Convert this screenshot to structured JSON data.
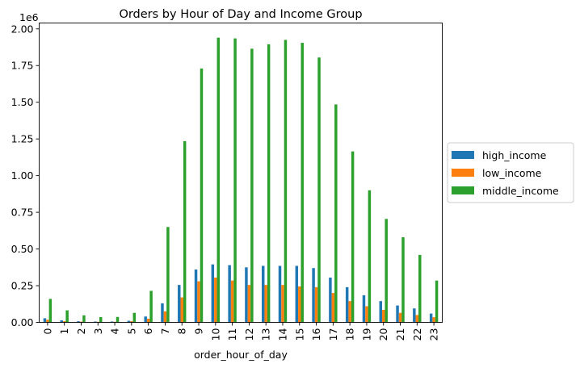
{
  "chart_data": {
    "type": "bar",
    "title": "Orders by Hour of Day and Income Group",
    "xlabel": "order_hour_of_day",
    "ylabel": "",
    "y_offset_label": "1e6",
    "ylim": [
      0,
      2.04
    ],
    "y_ticks": [
      "0.00",
      "0.25",
      "0.50",
      "0.75",
      "1.00",
      "1.25",
      "1.50",
      "1.75",
      "2.00"
    ],
    "legend_position": "center-right-outside",
    "grid": false,
    "categories": [
      "0",
      "1",
      "2",
      "3",
      "4",
      "5",
      "6",
      "7",
      "8",
      "9",
      "10",
      "11",
      "12",
      "13",
      "14",
      "15",
      "16",
      "17",
      "18",
      "19",
      "20",
      "21",
      "22",
      "23"
    ],
    "series": [
      {
        "name": "high_income",
        "color": "#1f77b4",
        "values": [
          0.028,
          0.014,
          0.008,
          0.006,
          0.006,
          0.011,
          0.04,
          0.13,
          0.255,
          0.36,
          0.395,
          0.39,
          0.375,
          0.385,
          0.385,
          0.385,
          0.37,
          0.305,
          0.24,
          0.185,
          0.145,
          0.115,
          0.095,
          0.06
        ]
      },
      {
        "name": "low_income",
        "color": "#ff7f0e",
        "values": [
          0.018,
          0.008,
          0.005,
          0.004,
          0.004,
          0.008,
          0.025,
          0.075,
          0.17,
          0.28,
          0.305,
          0.285,
          0.255,
          0.255,
          0.255,
          0.245,
          0.24,
          0.2,
          0.145,
          0.11,
          0.085,
          0.065,
          0.05,
          0.035
        ]
      },
      {
        "name": "middle_income",
        "color": "#2ca02c",
        "values": [
          0.16,
          0.082,
          0.048,
          0.036,
          0.037,
          0.065,
          0.215,
          0.65,
          1.235,
          1.73,
          1.94,
          1.935,
          1.865,
          1.895,
          1.925,
          1.905,
          1.805,
          1.485,
          1.165,
          0.9,
          0.705,
          0.58,
          0.46,
          0.285
        ]
      }
    ]
  }
}
